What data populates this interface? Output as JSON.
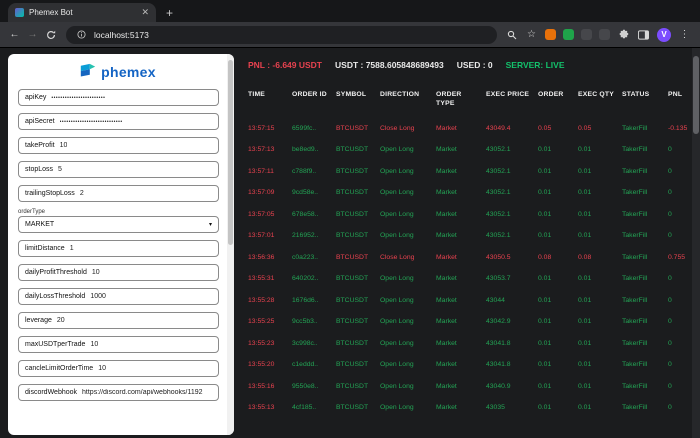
{
  "browser": {
    "tab_title": "Phemex Bot",
    "url": "localhost:5173",
    "profile_letter": "V"
  },
  "sidebar": {
    "logo_text": "phemex",
    "fields": [
      {
        "label": "apiKey",
        "value": "••••••••••••••••••••••••",
        "type": "password"
      },
      {
        "label": "apiSecret",
        "value": "••••••••••••••••••••••••••••",
        "type": "password"
      },
      {
        "label": "takeProfit",
        "value": "10",
        "type": "input"
      },
      {
        "label": "stopLoss",
        "value": "5",
        "type": "input"
      },
      {
        "label": "trailingStopLoss",
        "value": "2",
        "type": "input"
      },
      {
        "label": "orderType",
        "value": "MARKET",
        "type": "select"
      },
      {
        "label": "limitDistance",
        "value": "1",
        "type": "input"
      },
      {
        "label": "dailyProfitThreshold",
        "value": "10",
        "type": "input"
      },
      {
        "label": "dailyLossThreshold",
        "value": "1000",
        "type": "input"
      },
      {
        "label": "leverage",
        "value": "20",
        "type": "input"
      },
      {
        "label": "maxUSDTperTrade",
        "value": "10",
        "type": "input"
      },
      {
        "label": "cancleLimitOrderTime",
        "value": "10",
        "type": "input"
      },
      {
        "label": "discordWebhook",
        "value": "https://discord.com/api/webhooks/1192",
        "type": "input"
      }
    ]
  },
  "header": {
    "pnl": "PNL : -6.649 USDT",
    "usdt": "USDT : 7588.605848689493",
    "used": "USED : 0",
    "server": "SERVER: LIVE"
  },
  "table": {
    "columns": [
      "TIME",
      "ORDER ID",
      "SYMBOL",
      "DIRECTION",
      "ORDER TYPE",
      "EXEC PRICE",
      "ORDER",
      "EXEC QTY",
      "STATUS",
      "PNL"
    ],
    "rows": [
      {
        "time": "13:57:15",
        "order_id": "6599fc..",
        "symbol": "BTCUSDT",
        "direction": "Close Long",
        "order_type": "Market",
        "exec_price": "43049.4",
        "order": "0.05",
        "exec_qty": "0.05",
        "status": "TakerFill",
        "pnl": "-0.135",
        "side": "close"
      },
      {
        "time": "13:57:13",
        "order_id": "be8ed9..",
        "symbol": "BTCUSDT",
        "direction": "Open Long",
        "order_type": "Market",
        "exec_price": "43052.1",
        "order": "0.01",
        "exec_qty": "0.01",
        "status": "TakerFill",
        "pnl": "0",
        "side": "open"
      },
      {
        "time": "13:57:11",
        "order_id": "c788f9..",
        "symbol": "BTCUSDT",
        "direction": "Open Long",
        "order_type": "Market",
        "exec_price": "43052.1",
        "order": "0.01",
        "exec_qty": "0.01",
        "status": "TakerFill",
        "pnl": "0",
        "side": "open"
      },
      {
        "time": "13:57:09",
        "order_id": "9cd58e..",
        "symbol": "BTCUSDT",
        "direction": "Open Long",
        "order_type": "Market",
        "exec_price": "43052.1",
        "order": "0.01",
        "exec_qty": "0.01",
        "status": "TakerFill",
        "pnl": "0",
        "side": "open"
      },
      {
        "time": "13:57:05",
        "order_id": "678e58..",
        "symbol": "BTCUSDT",
        "direction": "Open Long",
        "order_type": "Market",
        "exec_price": "43052.1",
        "order": "0.01",
        "exec_qty": "0.01",
        "status": "TakerFill",
        "pnl": "0",
        "side": "open"
      },
      {
        "time": "13:57:01",
        "order_id": "216952..",
        "symbol": "BTCUSDT",
        "direction": "Open Long",
        "order_type": "Market",
        "exec_price": "43052.1",
        "order": "0.01",
        "exec_qty": "0.01",
        "status": "TakerFill",
        "pnl": "0",
        "side": "open"
      },
      {
        "time": "13:56:36",
        "order_id": "c0a223..",
        "symbol": "BTCUSDT",
        "direction": "Close Long",
        "order_type": "Market",
        "exec_price": "43050.5",
        "order": "0.08",
        "exec_qty": "0.08",
        "status": "TakerFill",
        "pnl": "0.755",
        "side": "close"
      },
      {
        "time": "13:55:31",
        "order_id": "640202..",
        "symbol": "BTCUSDT",
        "direction": "Open Long",
        "order_type": "Market",
        "exec_price": "43053.7",
        "order": "0.01",
        "exec_qty": "0.01",
        "status": "TakerFill",
        "pnl": "0",
        "side": "open"
      },
      {
        "time": "13:55:28",
        "order_id": "1676d6..",
        "symbol": "BTCUSDT",
        "direction": "Open Long",
        "order_type": "Market",
        "exec_price": "43044",
        "order": "0.01",
        "exec_qty": "0.01",
        "status": "TakerFill",
        "pnl": "0",
        "side": "open"
      },
      {
        "time": "13:55:25",
        "order_id": "9cc5b3..",
        "symbol": "BTCUSDT",
        "direction": "Open Long",
        "order_type": "Market",
        "exec_price": "43042.9",
        "order": "0.01",
        "exec_qty": "0.01",
        "status": "TakerFill",
        "pnl": "0",
        "side": "open"
      },
      {
        "time": "13:55:23",
        "order_id": "3c998c..",
        "symbol": "BTCUSDT",
        "direction": "Open Long",
        "order_type": "Market",
        "exec_price": "43041.8",
        "order": "0.01",
        "exec_qty": "0.01",
        "status": "TakerFill",
        "pnl": "0",
        "side": "open"
      },
      {
        "time": "13:55:20",
        "order_id": "c1eddd..",
        "symbol": "BTCUSDT",
        "direction": "Open Long",
        "order_type": "Market",
        "exec_price": "43041.8",
        "order": "0.01",
        "exec_qty": "0.01",
        "status": "TakerFill",
        "pnl": "0",
        "side": "open"
      },
      {
        "time": "13:55:16",
        "order_id": "9550e8..",
        "symbol": "BTCUSDT",
        "direction": "Open Long",
        "order_type": "Market",
        "exec_price": "43040.9",
        "order": "0.01",
        "exec_qty": "0.01",
        "status": "TakerFill",
        "pnl": "0",
        "side": "open"
      },
      {
        "time": "13:55:13",
        "order_id": "4cf185..",
        "symbol": "BTCUSDT",
        "direction": "Open Long",
        "order_type": "Market",
        "exec_price": "43035",
        "order": "0.01",
        "exec_qty": "0.01",
        "status": "TakerFill",
        "pnl": "0",
        "side": "open"
      }
    ]
  },
  "icons": {
    "select_arrow": "▾"
  },
  "colors": {
    "red": "#e8424f",
    "green": "#23a455",
    "live": "#13c16b",
    "logo_blue": "#1464c4"
  }
}
